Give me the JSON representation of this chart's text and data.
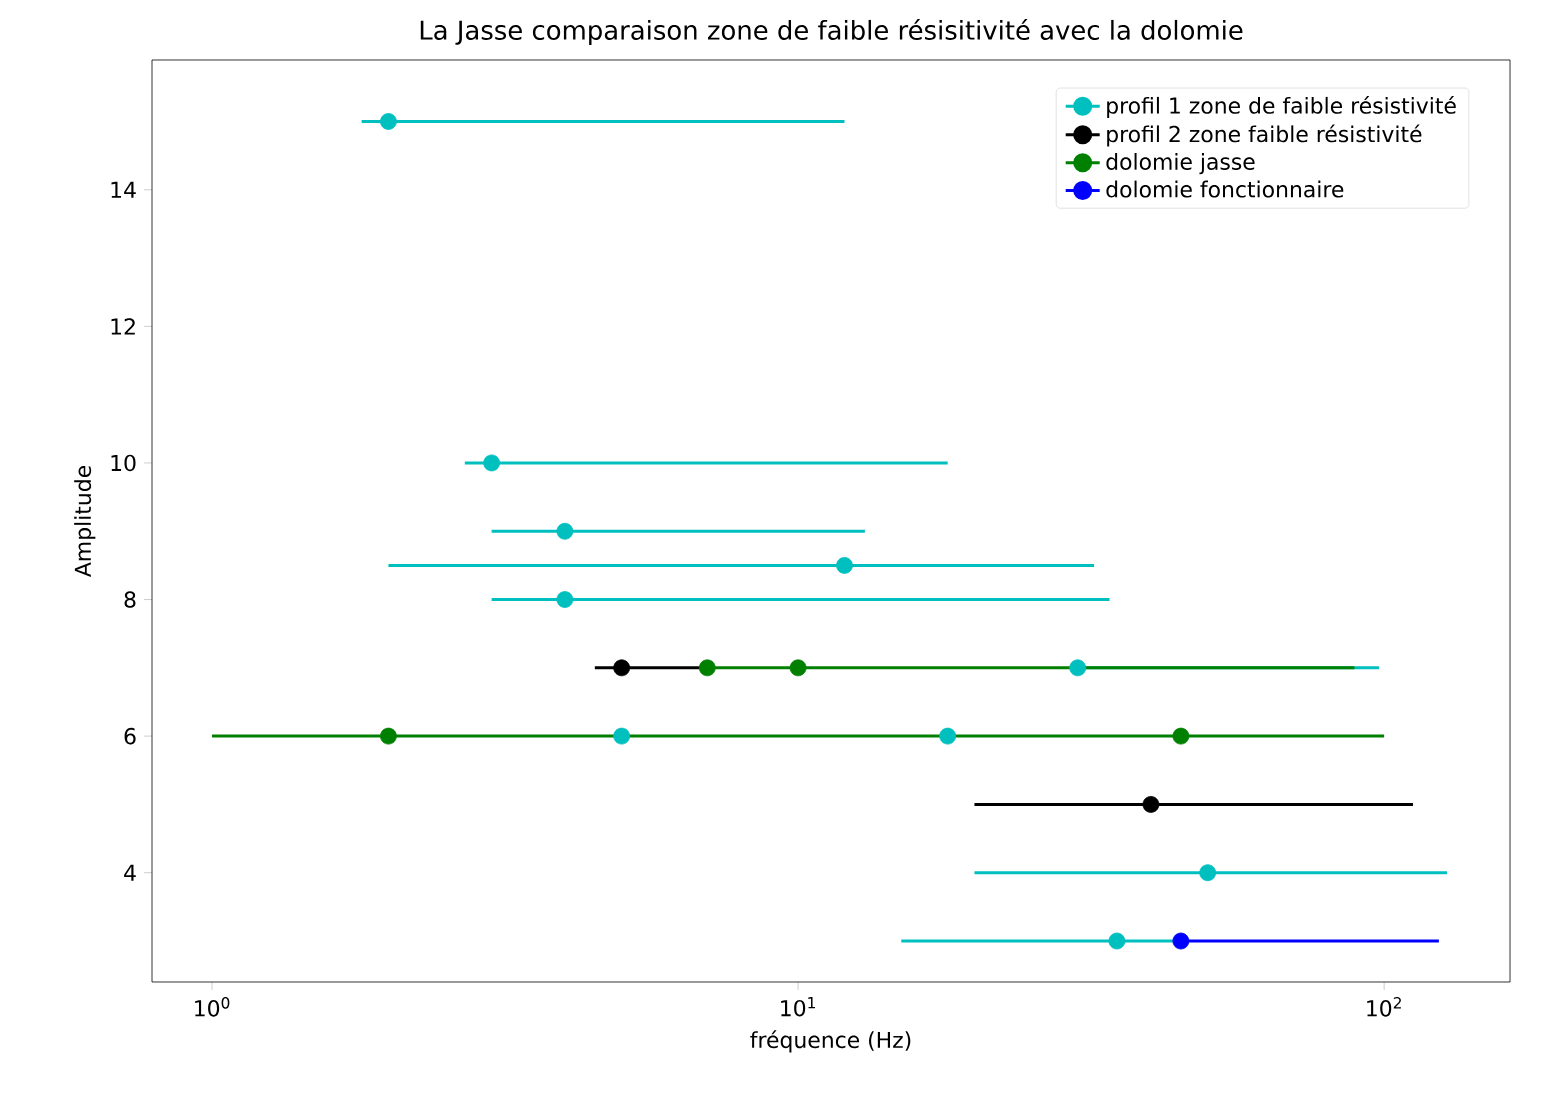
{
  "chart_data": {
    "type": "scatter",
    "title": "La Jasse comparaison zone de faible résisitivité avec la dolomie",
    "xlabel": "fréquence (Hz)",
    "ylabel": "Amplitude",
    "log": "x",
    "marker": "circle",
    "legend": "top right",
    "xlim": [
      0.79,
      164
    ],
    "ylim": [
      2.4,
      15.9
    ],
    "xticks": [
      {
        "value": 1,
        "label": "10$^{0}$"
      },
      {
        "value": 10,
        "label": "10$^{1}$"
      },
      {
        "value": 100,
        "label": "10$^{2}$"
      }
    ],
    "yticks": [
      4,
      6,
      8,
      10,
      12,
      14
    ],
    "series": [
      {
        "name": "profil 1 zone de faible résistivité",
        "color": "#00bfbf",
        "x": [
          2,
          3,
          4,
          12,
          4,
          30,
          5,
          18,
          50,
          35
        ],
        "values": [
          15,
          10,
          9,
          8.5,
          8,
          7,
          6,
          6,
          4,
          3
        ],
        "xerrors": [
          [
            1.8,
            12
          ],
          [
            2.7,
            18
          ],
          [
            3,
            13
          ],
          [
            2,
            32
          ],
          [
            3,
            34
          ],
          [
            30,
            98
          ],
          null,
          null,
          [
            20,
            128
          ],
          [
            15,
            45
          ]
        ]
      },
      {
        "name": "profil 2 zone faible résistivité",
        "color": "#000000",
        "x": [
          5,
          40
        ],
        "values": [
          7,
          5
        ],
        "xerrors": [
          [
            4.5,
            7
          ],
          [
            20,
            112
          ]
        ]
      },
      {
        "name": "dolomie jasse",
        "color": "#008000",
        "x": [
          7,
          10,
          2,
          45
        ],
        "values": [
          7,
          7,
          6,
          6
        ],
        "xerrors": [
          [
            7,
            89
          ],
          null,
          [
            1,
            100
          ],
          null
        ]
      },
      {
        "name": "dolomie fonctionnaire",
        "color": "#0000ff",
        "x": [
          45
        ],
        "values": [
          3
        ],
        "xerrors": [
          [
            45,
            124
          ]
        ]
      }
    ]
  }
}
